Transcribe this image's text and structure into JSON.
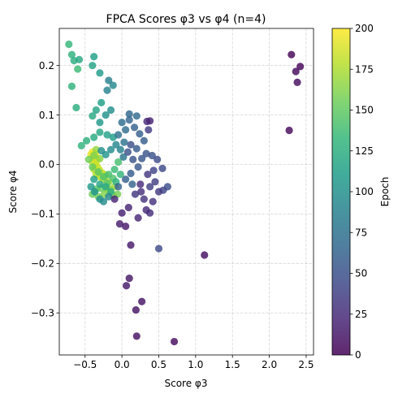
{
  "chart_data": {
    "type": "scatter",
    "title": "FPCA Scores φ3 vs φ4 (n=4)",
    "xlabel": "Score φ3",
    "ylabel": "Score φ4",
    "xlim": [
      -0.85,
      2.6
    ],
    "ylim": [
      -0.385,
      0.275
    ],
    "xticks": [
      -0.5,
      0.0,
      0.5,
      1.0,
      1.5,
      2.0,
      2.5
    ],
    "xtick_labels": [
      "−0.5",
      "0.0",
      "0.5",
      "1.0",
      "1.5",
      "2.0",
      "2.5"
    ],
    "yticks": [
      -0.3,
      -0.2,
      -0.1,
      0.0,
      0.1,
      0.2
    ],
    "ytick_labels": [
      "−0.3",
      "−0.2",
      "−0.1",
      "0.0",
      "0.1",
      "0.2"
    ],
    "grid": true,
    "colorbar": {
      "label": "Epoch",
      "range": [
        0,
        200
      ],
      "ticks": [
        0,
        25,
        50,
        75,
        100,
        125,
        150,
        175,
        200
      ],
      "tick_labels": [
        "0",
        "25",
        "50",
        "75",
        "100",
        "125",
        "150",
        "175",
        "200"
      ],
      "colormap": "viridis",
      "colors": [
        "#440154",
        "#482878",
        "#3e4a89",
        "#31688e",
        "#26828e",
        "#1f9e89",
        "#35b779",
        "#6ece58",
        "#b5de2b",
        "#fde725"
      ]
    },
    "points": [
      {
        "x": 2.3,
        "y": 0.222,
        "epoch": 2
      },
      {
        "x": 2.42,
        "y": 0.198,
        "epoch": 3
      },
      {
        "x": 2.36,
        "y": 0.188,
        "epoch": 5
      },
      {
        "x": 2.38,
        "y": 0.166,
        "epoch": 6
      },
      {
        "x": 2.27,
        "y": 0.069,
        "epoch": 4
      },
      {
        "x": 1.12,
        "y": -0.183,
        "epoch": 8
      },
      {
        "x": 0.71,
        "y": -0.358,
        "epoch": 7
      },
      {
        "x": 0.2,
        "y": -0.347,
        "epoch": 9
      },
      {
        "x": 0.19,
        "y": -0.294,
        "epoch": 10
      },
      {
        "x": 0.27,
        "y": -0.277,
        "epoch": 11
      },
      {
        "x": 0.1,
        "y": -0.23,
        "epoch": 12
      },
      {
        "x": 0.06,
        "y": -0.245,
        "epoch": 13
      },
      {
        "x": 0.12,
        "y": -0.163,
        "epoch": 14
      },
      {
        "x": 0.05,
        "y": -0.125,
        "epoch": 15
      },
      {
        "x": -0.03,
        "y": -0.12,
        "epoch": 16
      },
      {
        "x": 0.5,
        "y": -0.17,
        "epoch": 45
      },
      {
        "x": 0.0,
        "y": -0.098,
        "epoch": 18
      },
      {
        "x": 0.09,
        "y": -0.087,
        "epoch": 20
      },
      {
        "x": 0.22,
        "y": -0.108,
        "epoch": 22
      },
      {
        "x": 0.33,
        "y": -0.092,
        "epoch": 24
      },
      {
        "x": 0.38,
        "y": -0.098,
        "epoch": 26
      },
      {
        "x": 0.3,
        "y": -0.07,
        "epoch": 30
      },
      {
        "x": 0.42,
        "y": -0.075,
        "epoch": 28
      },
      {
        "x": 0.5,
        "y": -0.055,
        "epoch": 34
      },
      {
        "x": 0.56,
        "y": -0.052,
        "epoch": 42
      },
      {
        "x": 0.62,
        "y": -0.045,
        "epoch": 48
      },
      {
        "x": 0.45,
        "y": -0.035,
        "epoch": 36
      },
      {
        "x": 0.38,
        "y": -0.045,
        "epoch": 38
      },
      {
        "x": 0.25,
        "y": -0.04,
        "epoch": 25
      },
      {
        "x": 0.35,
        "y": -0.02,
        "epoch": 32
      },
      {
        "x": 0.43,
        "y": -0.012,
        "epoch": 40
      },
      {
        "x": 0.55,
        "y": -0.008,
        "epoch": 44
      },
      {
        "x": 0.48,
        "y": 0.01,
        "epoch": 46
      },
      {
        "x": 0.41,
        "y": 0.018,
        "epoch": 50
      },
      {
        "x": 0.33,
        "y": 0.022,
        "epoch": 52
      },
      {
        "x": 0.27,
        "y": 0.012,
        "epoch": 54
      },
      {
        "x": 0.2,
        "y": 0.032,
        "epoch": 56
      },
      {
        "x": 0.3,
        "y": 0.048,
        "epoch": 58
      },
      {
        "x": 0.24,
        "y": 0.062,
        "epoch": 60
      },
      {
        "x": 0.36,
        "y": 0.07,
        "epoch": 35
      },
      {
        "x": 0.17,
        "y": 0.075,
        "epoch": 62
      },
      {
        "x": 0.1,
        "y": 0.09,
        "epoch": 64
      },
      {
        "x": 0.38,
        "y": 0.088,
        "epoch": 20
      },
      {
        "x": 0.34,
        "y": 0.087,
        "epoch": 23
      },
      {
        "x": 0.1,
        "y": 0.102,
        "epoch": 66
      },
      {
        "x": 0.2,
        "y": 0.098,
        "epoch": 68
      },
      {
        "x": 0.05,
        "y": 0.07,
        "epoch": 70
      },
      {
        "x": 0.0,
        "y": 0.085,
        "epoch": 72
      },
      {
        "x": -0.05,
        "y": 0.06,
        "epoch": 74
      },
      {
        "x": 0.03,
        "y": 0.045,
        "epoch": 76
      },
      {
        "x": 0.12,
        "y": 0.04,
        "epoch": 48
      },
      {
        "x": 0.08,
        "y": 0.025,
        "epoch": 50
      },
      {
        "x": 0.15,
        "y": 0.01,
        "epoch": 52
      },
      {
        "x": 0.02,
        "y": 0.015,
        "epoch": 78
      },
      {
        "x": 0.22,
        "y": -0.005,
        "epoch": 55
      },
      {
        "x": 0.12,
        "y": -0.018,
        "epoch": 58
      },
      {
        "x": 0.05,
        "y": -0.03,
        "epoch": 60
      },
      {
        "x": 0.18,
        "y": -0.06,
        "epoch": 33
      },
      {
        "x": 0.26,
        "y": -0.055,
        "epoch": 27
      },
      {
        "x": 0.14,
        "y": -0.04,
        "epoch": 62
      },
      {
        "x": -0.05,
        "y": -0.045,
        "epoch": 64
      },
      {
        "x": -0.1,
        "y": -0.07,
        "epoch": 21
      },
      {
        "x": -0.18,
        "y": -0.065,
        "epoch": 92
      },
      {
        "x": -0.25,
        "y": -0.075,
        "epoch": 96
      },
      {
        "x": -0.3,
        "y": -0.07,
        "epoch": 100
      },
      {
        "x": -0.37,
        "y": -0.055,
        "epoch": 104
      },
      {
        "x": -0.42,
        "y": -0.045,
        "epoch": 108
      },
      {
        "x": -0.38,
        "y": -0.03,
        "epoch": 112
      },
      {
        "x": -0.3,
        "y": -0.04,
        "epoch": 116
      },
      {
        "x": -0.22,
        "y": -0.045,
        "epoch": 120
      },
      {
        "x": -0.15,
        "y": -0.055,
        "epoch": 124
      },
      {
        "x": -0.08,
        "y": -0.035,
        "epoch": 128
      },
      {
        "x": -0.02,
        "y": -0.02,
        "epoch": 132
      },
      {
        "x": -0.1,
        "y": -0.01,
        "epoch": 136
      },
      {
        "x": -0.18,
        "y": -0.02,
        "epoch": 140
      },
      {
        "x": -0.25,
        "y": -0.025,
        "epoch": 144
      },
      {
        "x": -0.32,
        "y": -0.015,
        "epoch": 148
      },
      {
        "x": -0.4,
        "y": -0.005,
        "epoch": 152
      },
      {
        "x": -0.45,
        "y": 0.01,
        "epoch": 156
      },
      {
        "x": -0.38,
        "y": 0.018,
        "epoch": 160
      },
      {
        "x": -0.3,
        "y": 0.012,
        "epoch": 164
      },
      {
        "x": -0.35,
        "y": 0.03,
        "epoch": 168
      },
      {
        "x": -0.28,
        "y": 0.028,
        "epoch": 100
      },
      {
        "x": -0.22,
        "y": 0.02,
        "epoch": 104
      },
      {
        "x": -0.15,
        "y": 0.03,
        "epoch": 96
      },
      {
        "x": -0.08,
        "y": 0.04,
        "epoch": 92
      },
      {
        "x": -0.02,
        "y": 0.03,
        "epoch": 88
      },
      {
        "x": -0.12,
        "y": 0.055,
        "epoch": 110
      },
      {
        "x": -0.2,
        "y": 0.06,
        "epoch": 114
      },
      {
        "x": -0.3,
        "y": 0.065,
        "epoch": 118
      },
      {
        "x": -0.38,
        "y": 0.055,
        "epoch": 122
      },
      {
        "x": -0.48,
        "y": 0.048,
        "epoch": 126
      },
      {
        "x": -0.55,
        "y": 0.038,
        "epoch": 130
      },
      {
        "x": -0.3,
        "y": 0.085,
        "epoch": 106
      },
      {
        "x": -0.22,
        "y": 0.1,
        "epoch": 102
      },
      {
        "x": -0.15,
        "y": 0.11,
        "epoch": 98
      },
      {
        "x": -0.28,
        "y": 0.125,
        "epoch": 112
      },
      {
        "x": -0.35,
        "y": 0.11,
        "epoch": 116
      },
      {
        "x": -0.4,
        "y": 0.098,
        "epoch": 120
      },
      {
        "x": -0.62,
        "y": 0.115,
        "epoch": 124
      },
      {
        "x": -0.68,
        "y": 0.158,
        "epoch": 128
      },
      {
        "x": -0.2,
        "y": 0.15,
        "epoch": 90
      },
      {
        "x": -0.18,
        "y": 0.17,
        "epoch": 86
      },
      {
        "x": -0.12,
        "y": 0.16,
        "epoch": 94
      },
      {
        "x": -0.3,
        "y": 0.185,
        "epoch": 108
      },
      {
        "x": -0.38,
        "y": 0.218,
        "epoch": 112
      },
      {
        "x": -0.4,
        "y": 0.2,
        "epoch": 116
      },
      {
        "x": -0.58,
        "y": 0.212,
        "epoch": 120
      },
      {
        "x": -0.65,
        "y": 0.21,
        "epoch": 124
      },
      {
        "x": -0.68,
        "y": 0.222,
        "epoch": 128
      },
      {
        "x": -0.72,
        "y": 0.243,
        "epoch": 132
      },
      {
        "x": -0.6,
        "y": 0.193,
        "epoch": 136
      },
      {
        "x": -0.05,
        "y": 0.005,
        "epoch": 140
      },
      {
        "x": -0.12,
        "y": -0.028,
        "epoch": 144
      },
      {
        "x": -0.2,
        "y": -0.038,
        "epoch": 148
      },
      {
        "x": -0.28,
        "y": -0.048,
        "epoch": 152
      },
      {
        "x": -0.35,
        "y": -0.05,
        "epoch": 150
      },
      {
        "x": -0.4,
        "y": -0.06,
        "epoch": 154
      },
      {
        "x": -0.32,
        "y": -0.065,
        "epoch": 158
      },
      {
        "x": -0.24,
        "y": -0.06,
        "epoch": 162
      },
      {
        "x": -0.16,
        "y": -0.05,
        "epoch": 166
      },
      {
        "x": -0.1,
        "y": -0.045,
        "epoch": 170
      },
      {
        "x": -0.18,
        "y": -0.035,
        "epoch": 172
      },
      {
        "x": -0.25,
        "y": -0.03,
        "epoch": 174
      },
      {
        "x": -0.3,
        "y": -0.025,
        "epoch": 176
      },
      {
        "x": -0.35,
        "y": -0.02,
        "epoch": 178
      },
      {
        "x": -0.38,
        "y": -0.01,
        "epoch": 180
      },
      {
        "x": -0.33,
        "y": -0.005,
        "epoch": 182
      },
      {
        "x": -0.36,
        "y": 0.0,
        "epoch": 184
      },
      {
        "x": -0.4,
        "y": 0.005,
        "epoch": 186
      },
      {
        "x": -0.34,
        "y": 0.008,
        "epoch": 188
      },
      {
        "x": -0.38,
        "y": 0.014,
        "epoch": 190
      },
      {
        "x": -0.42,
        "y": 0.02,
        "epoch": 192
      },
      {
        "x": -0.36,
        "y": 0.022,
        "epoch": 194
      },
      {
        "x": -0.4,
        "y": 0.025,
        "epoch": 196
      },
      {
        "x": -0.35,
        "y": 0.015,
        "epoch": 198
      },
      {
        "x": -0.37,
        "y": 0.01,
        "epoch": 200
      },
      {
        "x": -0.3,
        "y": -0.012,
        "epoch": 185
      },
      {
        "x": -0.26,
        "y": -0.018,
        "epoch": 180
      },
      {
        "x": -0.22,
        "y": -0.022,
        "epoch": 176
      },
      {
        "x": -0.2,
        "y": -0.05,
        "epoch": 170
      },
      {
        "x": -0.12,
        "y": -0.062,
        "epoch": 164
      },
      {
        "x": -0.06,
        "y": -0.06,
        "epoch": 158
      }
    ]
  }
}
